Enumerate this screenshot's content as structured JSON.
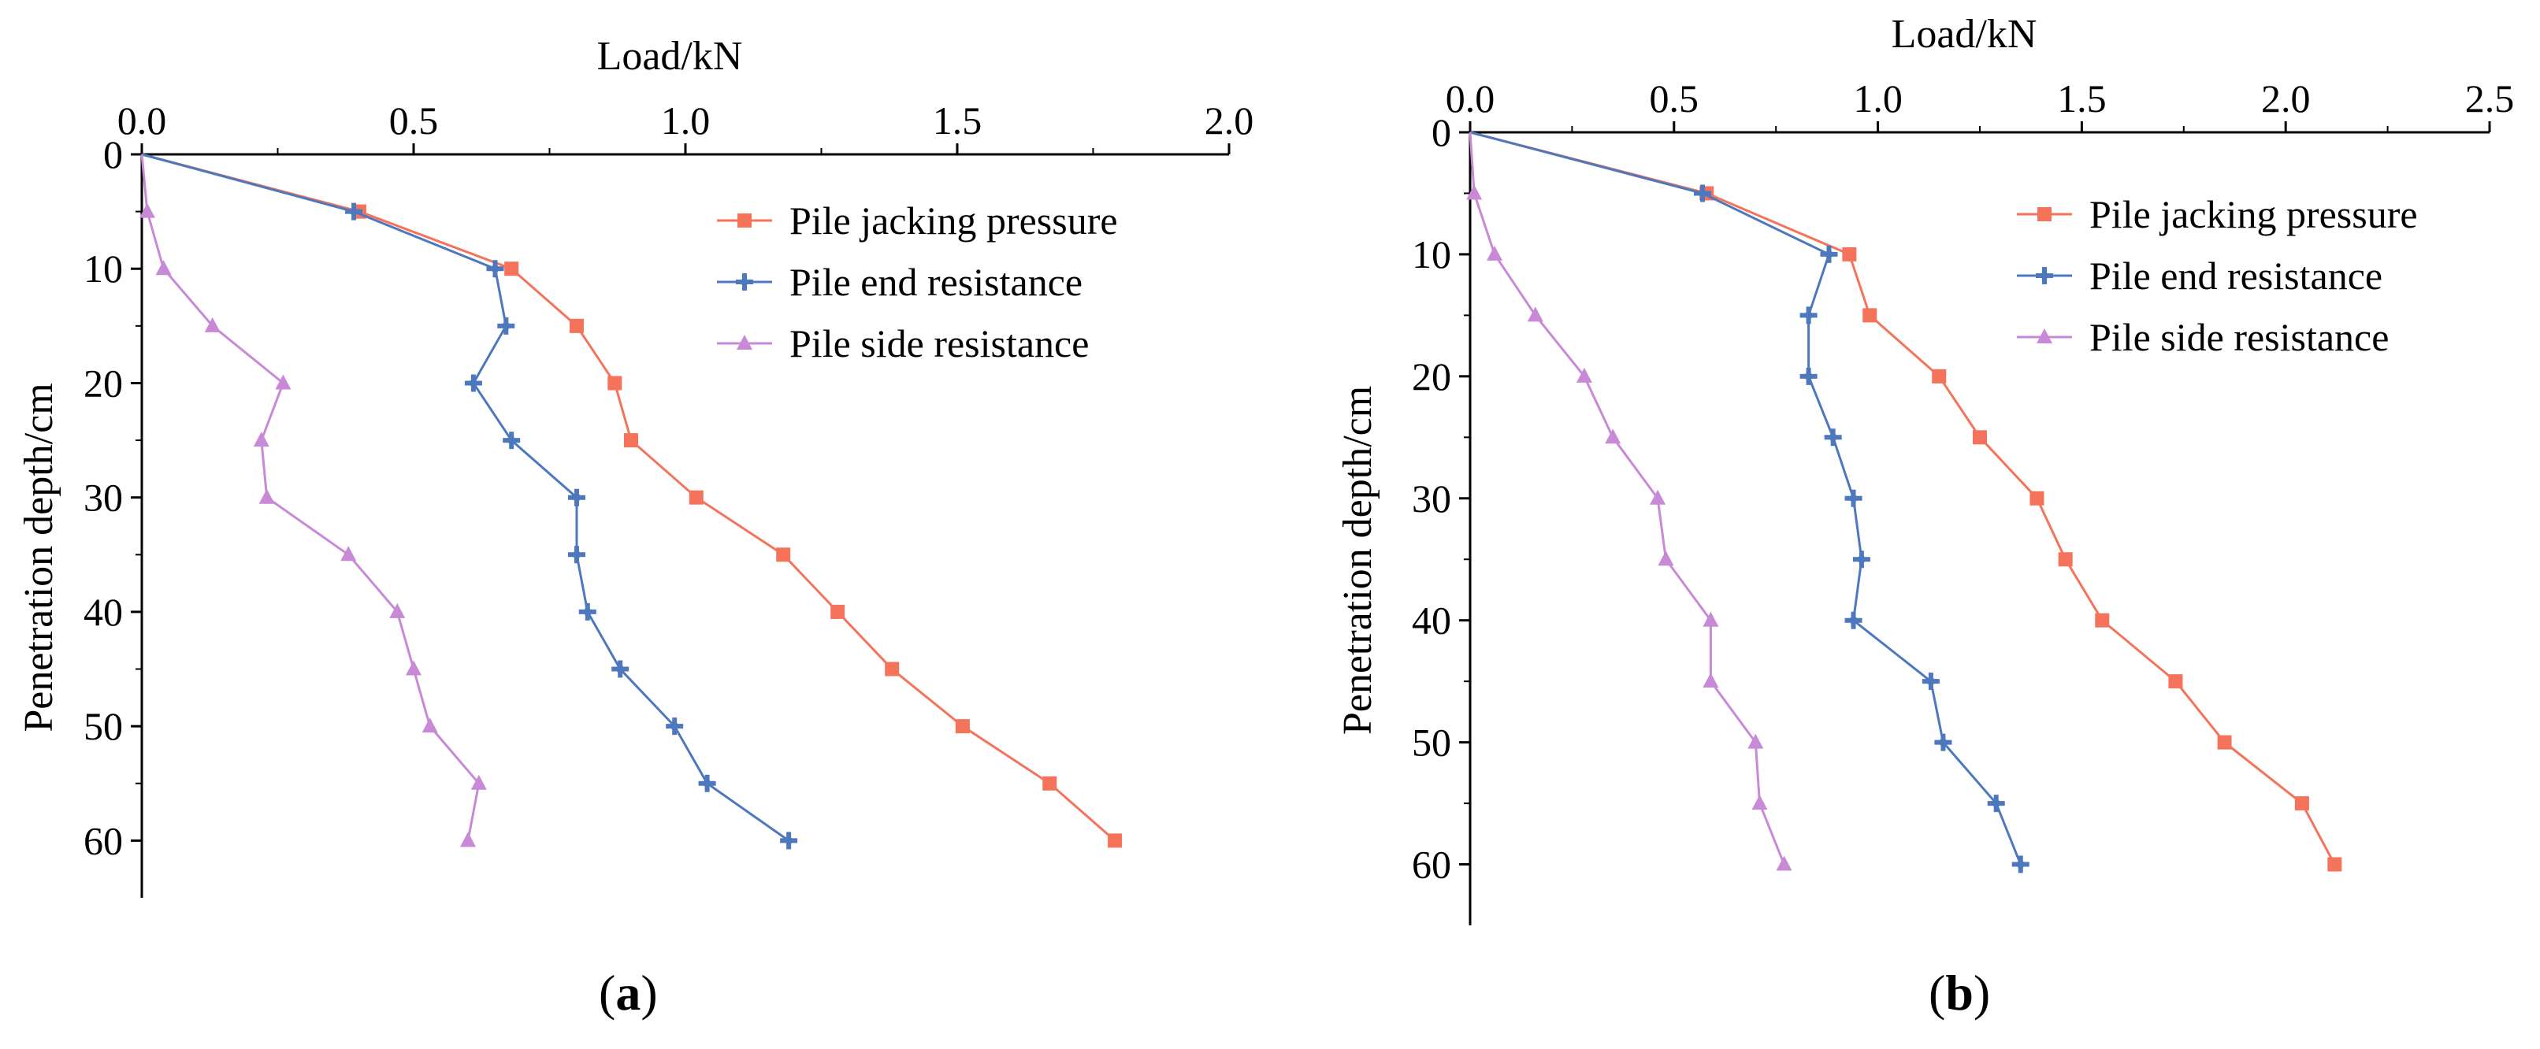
{
  "chart_data": [
    {
      "type": "line",
      "panel_label": "a",
      "xlabel": "Load/kN",
      "ylabel": "Penetration depth/cm",
      "xlim": [
        0,
        2.0
      ],
      "ylim": [
        0,
        65
      ],
      "x_ticks": [
        "0.0",
        "0.5",
        "1.0",
        "1.5",
        "2.0"
      ],
      "y_ticks": [
        "0",
        "10",
        "20",
        "30",
        "40",
        "50",
        "60"
      ],
      "x_axis_position": "top",
      "y_inverted": true,
      "legend_position": "top-right",
      "series": [
        {
          "name": "Pile jacking pressure",
          "color": "#F4735A",
          "marker": "square",
          "points": [
            [
              0,
              0
            ],
            [
              0.4,
              5
            ],
            [
              0.68,
              10
            ],
            [
              0.8,
              15
            ],
            [
              0.87,
              20
            ],
            [
              0.9,
              25
            ],
            [
              1.02,
              30
            ],
            [
              1.18,
              35
            ],
            [
              1.28,
              40
            ],
            [
              1.38,
              45
            ],
            [
              1.51,
              50
            ],
            [
              1.67,
              55
            ],
            [
              1.79,
              60
            ]
          ]
        },
        {
          "name": "Pile end resistance",
          "color": "#4E78BE",
          "marker": "plus",
          "points": [
            [
              0,
              0
            ],
            [
              0.39,
              5
            ],
            [
              0.65,
              10
            ],
            [
              0.67,
              15
            ],
            [
              0.61,
              20
            ],
            [
              0.68,
              25
            ],
            [
              0.8,
              30
            ],
            [
              0.8,
              35
            ],
            [
              0.82,
              40
            ],
            [
              0.88,
              45
            ],
            [
              0.98,
              50
            ],
            [
              1.04,
              55
            ],
            [
              1.19,
              60
            ]
          ]
        },
        {
          "name": "Pile side resistance",
          "color": "#C889D6",
          "marker": "triangle",
          "points": [
            [
              0,
              0
            ],
            [
              0.01,
              5
            ],
            [
              0.04,
              10
            ],
            [
              0.13,
              15
            ],
            [
              0.26,
              20
            ],
            [
              0.22,
              25
            ],
            [
              0.23,
              30
            ],
            [
              0.38,
              35
            ],
            [
              0.47,
              40
            ],
            [
              0.5,
              45
            ],
            [
              0.53,
              50
            ],
            [
              0.62,
              55
            ],
            [
              0.6,
              60
            ]
          ]
        }
      ]
    },
    {
      "type": "line",
      "panel_label": "b",
      "xlabel": "Load/kN",
      "ylabel": "Penetration depth/cm",
      "xlim": [
        0,
        2.5
      ],
      "ylim": [
        0,
        65
      ],
      "x_ticks": [
        "0.0",
        "0.5",
        "1.0",
        "1.5",
        "2.0",
        "2.5"
      ],
      "y_ticks": [
        "0",
        "10",
        "20",
        "30",
        "40",
        "50",
        "60"
      ],
      "x_axis_position": "top",
      "y_inverted": true,
      "legend_position": "top-right",
      "series": [
        {
          "name": "Pile jacking pressure",
          "color": "#F4735A",
          "marker": "square",
          "points": [
            [
              0,
              0
            ],
            [
              0.58,
              5
            ],
            [
              0.93,
              10
            ],
            [
              0.98,
              15
            ],
            [
              1.15,
              20
            ],
            [
              1.25,
              25
            ],
            [
              1.39,
              30
            ],
            [
              1.46,
              35
            ],
            [
              1.55,
              40
            ],
            [
              1.73,
              45
            ],
            [
              1.85,
              50
            ],
            [
              2.04,
              55
            ],
            [
              2.12,
              60
            ]
          ]
        },
        {
          "name": "Pile end resistance",
          "color": "#4E78BE",
          "marker": "plus",
          "points": [
            [
              0,
              0
            ],
            [
              0.57,
              5
            ],
            [
              0.88,
              10
            ],
            [
              0.83,
              15
            ],
            [
              0.83,
              20
            ],
            [
              0.89,
              25
            ],
            [
              0.94,
              30
            ],
            [
              0.96,
              35
            ],
            [
              0.94,
              40
            ],
            [
              1.13,
              45
            ],
            [
              1.16,
              50
            ],
            [
              1.29,
              55
            ],
            [
              1.35,
              60
            ]
          ]
        },
        {
          "name": "Pile side resistance",
          "color": "#C889D6",
          "marker": "triangle",
          "points": [
            [
              0,
              0
            ],
            [
              0.01,
              5
            ],
            [
              0.06,
              10
            ],
            [
              0.16,
              15
            ],
            [
              0.28,
              20
            ],
            [
              0.35,
              25
            ],
            [
              0.46,
              30
            ],
            [
              0.48,
              35
            ],
            [
              0.59,
              40
            ],
            [
              0.59,
              45
            ],
            [
              0.7,
              50
            ],
            [
              0.71,
              55
            ],
            [
              0.77,
              60
            ]
          ]
        }
      ]
    }
  ]
}
